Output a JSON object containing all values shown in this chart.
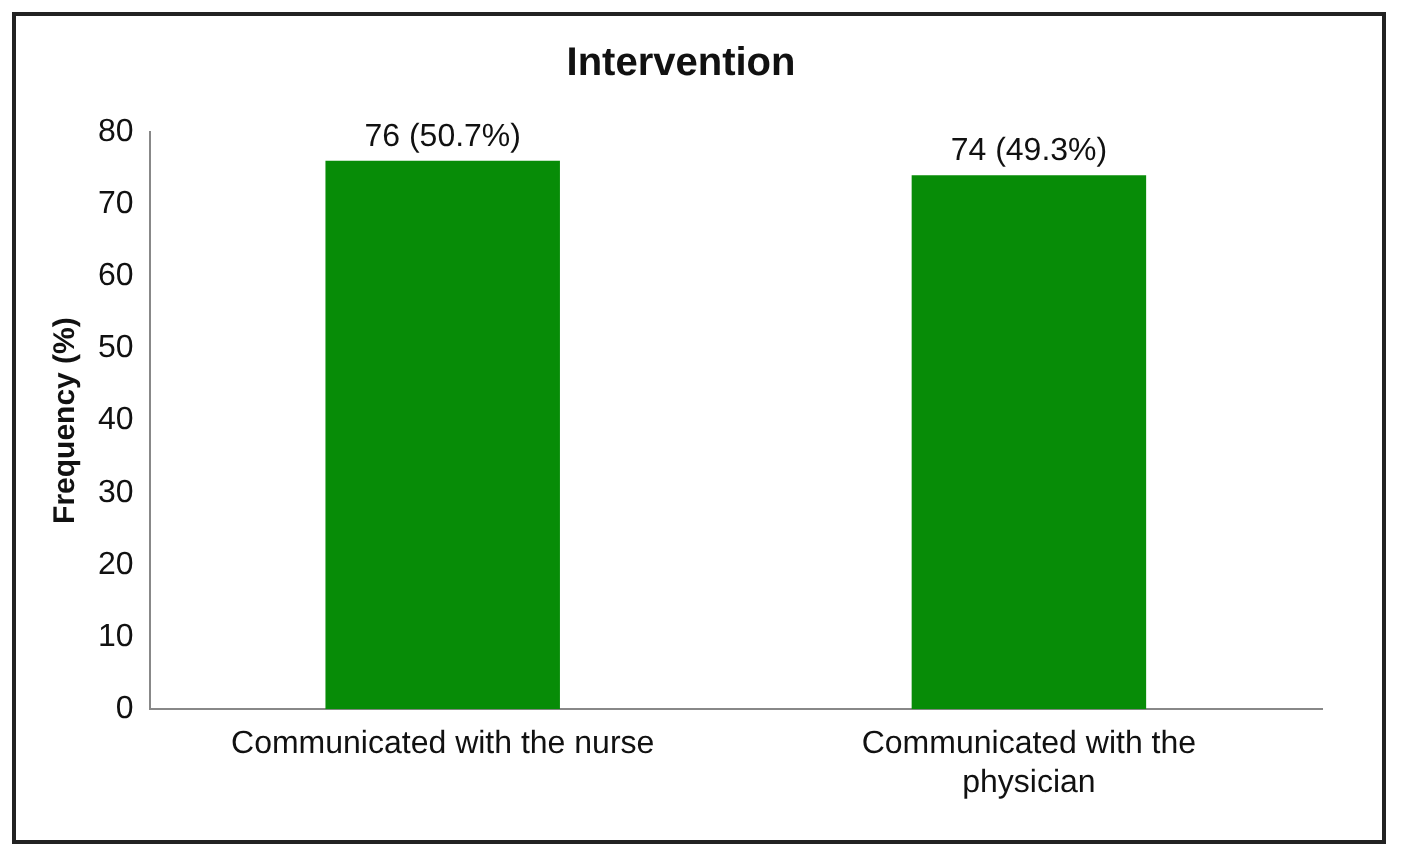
{
  "chart_data": {
    "type": "bar",
    "title": "Intervention",
    "ylabel": "Frequency (%)",
    "categories": [
      "Communicated with the nurse",
      "Communicated with the physician"
    ],
    "values": [
      76,
      74
    ],
    "value_labels": [
      "76 (50.7%)",
      "74 (49.3%)"
    ],
    "color": "#078c07",
    "ylim": [
      0,
      80
    ],
    "yticks": [
      0,
      10,
      20,
      30,
      40,
      50,
      60,
      70,
      80
    ],
    "grid": false,
    "legend": false
  }
}
